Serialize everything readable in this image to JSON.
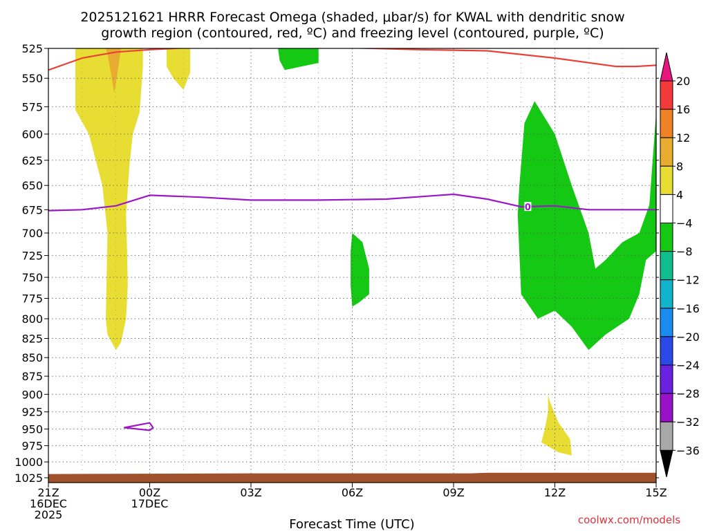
{
  "chart_data": {
    "type": "heatmap",
    "title": "2025121621 HRRR Forecast Omega (shaded, μbar/s) for KWAL with dendritic snow growth region (contoured, red, ºC) and freezing level (contoured, purple, ºC)",
    "xlabel": "Forecast Time (UTC)",
    "ylabel": "",
    "credit": "coolwx.com/models",
    "x_range_hours": [
      0,
      18
    ],
    "y_range_hpa": [
      525,
      1025
    ],
    "y_scale": "log-pressure",
    "y_ticks": [
      525,
      550,
      575,
      600,
      625,
      650,
      675,
      700,
      725,
      750,
      775,
      800,
      825,
      850,
      875,
      900,
      925,
      950,
      975,
      1000,
      1025
    ],
    "x_ticks": [
      {
        "hour": 0,
        "lines": [
          "21Z",
          "16DEC",
          "2025"
        ]
      },
      {
        "hour": 3,
        "lines": [
          "00Z",
          "17DEC"
        ]
      },
      {
        "hour": 6,
        "lines": [
          "03Z"
        ]
      },
      {
        "hour": 9,
        "lines": [
          "06Z"
        ]
      },
      {
        "hour": 12,
        "lines": [
          "09Z"
        ]
      },
      {
        "hour": 15,
        "lines": [
          "12Z"
        ]
      },
      {
        "hour": 18,
        "lines": [
          "15Z"
        ]
      }
    ],
    "grid": true,
    "colorbar": {
      "position": "right",
      "labels": [
        "20",
        "16",
        "12",
        "8",
        "4",
        "−4",
        "−8",
        "−12",
        "−16",
        "−20",
        "−24",
        "−28",
        "−32",
        "−36"
      ],
      "top_arrow_color": "#e8157f",
      "bottom_arrow_color": "#000000",
      "colors_top_to_bottom": [
        "#f23a3a",
        "#ee8224",
        "#e8ad30",
        "#e8dd32",
        "#ffffff",
        "#14c814",
        "#12bc8e",
        "#12b4cc",
        "#1a8cf0",
        "#2a4ae8",
        "#6a22e0",
        "#9a12c8",
        "#a8a8a8"
      ]
    },
    "series": [
      {
        "name": "",
        "kind": "contour",
        "color": "#e84238",
        "points": [
          [
            0,
            543
          ],
          [
            1,
            533
          ],
          [
            2,
            528
          ],
          [
            3,
            526
          ],
          [
            4.5,
            524
          ],
          [
            7,
            523
          ],
          [
            11,
            526
          ],
          [
            13,
            527
          ],
          [
            15,
            533
          ],
          [
            16.8,
            540
          ],
          [
            17.4,
            540
          ],
          [
            18,
            539
          ]
        ]
      },
      {
        "name": "",
        "kind": "contour",
        "color": "#9a18c8",
        "contour_label": "0",
        "points": [
          [
            0,
            676
          ],
          [
            1,
            675
          ],
          [
            2,
            671
          ],
          [
            3,
            660
          ],
          [
            4.5,
            662
          ],
          [
            6,
            665
          ],
          [
            8,
            665
          ],
          [
            10,
            664
          ],
          [
            12,
            659
          ],
          [
            13,
            664
          ],
          [
            14,
            672
          ],
          [
            15,
            671
          ],
          [
            16,
            675
          ],
          [
            18,
            675
          ]
        ]
      },
      {
        "name": "",
        "kind": "contour",
        "color": "#9a18c8",
        "points": [
          [
            2.25,
            948
          ],
          [
            3.0,
            941
          ],
          [
            3.1,
            948
          ],
          [
            3.0,
            952
          ],
          [
            2.25,
            948
          ]
        ]
      }
    ],
    "shaded_regions": [
      {
        "level": "4 to 8",
        "color": "#e8dd32",
        "points": [
          [
            0.8,
            525
          ],
          [
            2.8,
            525
          ],
          [
            2.8,
            540
          ],
          [
            2.7,
            580
          ],
          [
            2.5,
            600
          ],
          [
            2.4,
            630
          ],
          [
            2.3,
            680
          ],
          [
            2.33,
            720
          ],
          [
            2.35,
            760
          ],
          [
            2.3,
            800
          ],
          [
            2.15,
            830
          ],
          [
            2.0,
            840
          ],
          [
            1.75,
            820
          ],
          [
            1.7,
            800
          ],
          [
            1.75,
            700
          ],
          [
            1.6,
            650
          ],
          [
            1.2,
            600
          ],
          [
            0.8,
            578
          ]
        ]
      },
      {
        "level": "8 to 12",
        "color": "#e8ad30",
        "points": [
          [
            1.7,
            525
          ],
          [
            2.15,
            525
          ],
          [
            2.05,
            545
          ],
          [
            1.95,
            563
          ],
          [
            1.85,
            545
          ],
          [
            1.75,
            530
          ]
        ]
      },
      {
        "level": "4 to 8",
        "color": "#e8dd32",
        "points": [
          [
            3.5,
            525
          ],
          [
            4.2,
            525
          ],
          [
            4.2,
            545
          ],
          [
            4.0,
            560
          ],
          [
            3.7,
            550
          ],
          [
            3.5,
            540
          ]
        ]
      },
      {
        "level": "4 to 8",
        "color": "#e8dd32",
        "points": [
          [
            14.8,
            900
          ],
          [
            14.85,
            910
          ],
          [
            15.1,
            940
          ],
          [
            15.45,
            965
          ],
          [
            15.5,
            990
          ],
          [
            15.1,
            985
          ],
          [
            14.6,
            970
          ],
          [
            14.7,
            950
          ],
          [
            14.8,
            925
          ]
        ]
      },
      {
        "level": "-8 to -4",
        "color": "#14c814",
        "points": [
          [
            6.8,
            525
          ],
          [
            8.0,
            525
          ],
          [
            8.0,
            537
          ],
          [
            7.0,
            543
          ],
          [
            6.85,
            535
          ]
        ]
      },
      {
        "level": "-8 to -4",
        "color": "#14c814",
        "points": [
          [
            9.0,
            700
          ],
          [
            9.3,
            710
          ],
          [
            9.5,
            740
          ],
          [
            9.5,
            770
          ],
          [
            9.2,
            780
          ],
          [
            9.0,
            785
          ],
          [
            8.95,
            760
          ],
          [
            8.95,
            720
          ]
        ]
      },
      {
        "level": "-8 to -4",
        "color": "#14c814",
        "points": [
          [
            14.4,
            570
          ],
          [
            15.0,
            600
          ],
          [
            15.5,
            650
          ],
          [
            16.0,
            700
          ],
          [
            16.2,
            740
          ],
          [
            16.5,
            730
          ],
          [
            17.0,
            710
          ],
          [
            17.5,
            700
          ],
          [
            17.8,
            670
          ],
          [
            18.0,
            580
          ],
          [
            18.0,
            720
          ],
          [
            17.7,
            730
          ],
          [
            17.5,
            770
          ],
          [
            17.2,
            800
          ],
          [
            16.5,
            820
          ],
          [
            16.0,
            840
          ],
          [
            15.5,
            810
          ],
          [
            15.0,
            790
          ],
          [
            14.5,
            800
          ],
          [
            14.0,
            770
          ],
          [
            13.9,
            680
          ],
          [
            13.95,
            650
          ],
          [
            14.1,
            590
          ]
        ]
      }
    ],
    "terrain": {
      "color": "#a0522d",
      "surface_pressure": [
        [
          0,
          1019
        ],
        [
          6,
          1018
        ],
        [
          12.5,
          1018
        ],
        [
          13,
          1017
        ],
        [
          18,
          1017
        ]
      ]
    }
  }
}
